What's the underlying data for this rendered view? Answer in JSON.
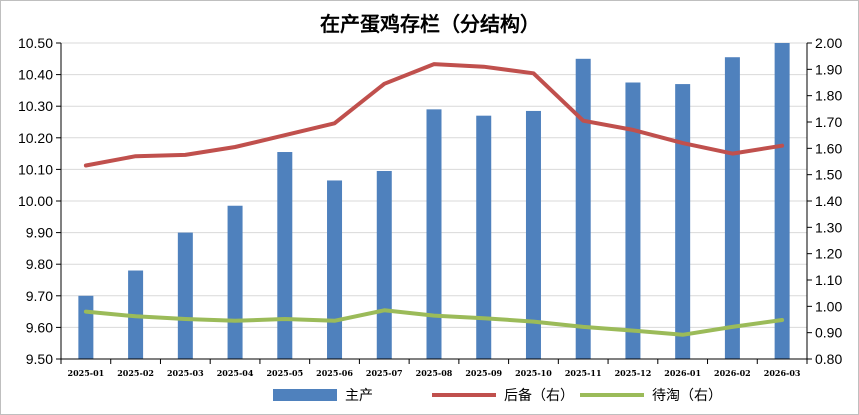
{
  "chart_data": {
    "type": "bar",
    "title": "在产蛋鸡存栏（分结构）",
    "categories": [
      "2025-01",
      "2025-02",
      "2025-03",
      "2025-04",
      "2025-05",
      "2025-06",
      "2025-07",
      "2025-08",
      "2025-09",
      "2025-10",
      "2025-11",
      "2025-12",
      "2026-01",
      "2026-02",
      "2026-03"
    ],
    "y_left": {
      "ylim": [
        9.5,
        10.5
      ],
      "ticks": [
        "9.50",
        "9.60",
        "9.70",
        "9.80",
        "9.90",
        "10.00",
        "10.10",
        "10.20",
        "10.30",
        "10.40",
        "10.50"
      ]
    },
    "y_right": {
      "ylim": [
        0.8,
        2.0
      ],
      "ticks": [
        "0.80",
        "0.90",
        "1.00",
        "1.10",
        "1.20",
        "1.30",
        "1.40",
        "1.50",
        "1.60",
        "1.70",
        "1.80",
        "1.90",
        "2.00"
      ]
    },
    "grid": true,
    "legend_position": "bottom",
    "series": [
      {
        "name": "主产",
        "kind": "bar",
        "axis": "left",
        "color": "#4f81bd",
        "values": [
          9.7,
          9.78,
          9.9,
          9.985,
          10.155,
          10.065,
          10.095,
          10.29,
          10.27,
          10.285,
          10.45,
          10.375,
          10.37,
          10.455,
          10.5
        ]
      },
      {
        "name": "后备（右）",
        "kind": "line",
        "axis": "right",
        "color": "#c0504d",
        "values": [
          1.535,
          1.57,
          1.575,
          1.605,
          1.65,
          1.695,
          1.845,
          1.92,
          1.91,
          1.885,
          1.705,
          1.67,
          1.62,
          1.58,
          1.61
        ]
      },
      {
        "name": "待淘（右）",
        "kind": "line",
        "axis": "right",
        "color": "#9bbb59",
        "values": [
          0.98,
          0.962,
          0.952,
          0.945,
          0.952,
          0.945,
          0.985,
          0.965,
          0.955,
          0.942,
          0.922,
          0.908,
          0.892,
          0.922,
          0.948
        ]
      }
    ]
  }
}
